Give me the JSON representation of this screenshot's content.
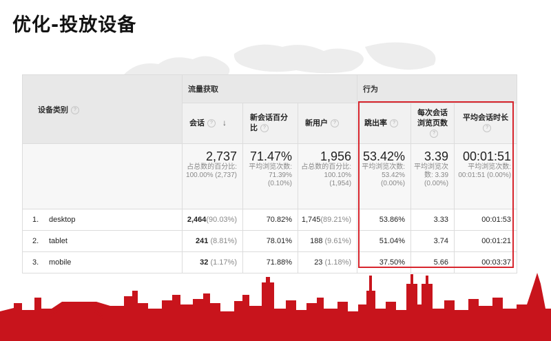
{
  "page": {
    "title": "优化-投放设备"
  },
  "table": {
    "dimension_header": "设备类别",
    "groups": {
      "acquisition": "流量获取",
      "behavior": "行为"
    },
    "columns": {
      "sessions": "会话",
      "new_session_pct": "新会话百分比",
      "new_users": "新用户",
      "bounce_rate": "跳出率",
      "pages_per_session": "每次会话浏览页数",
      "avg_duration": "平均会话时长"
    },
    "summary": {
      "sessions": {
        "value": "2,737",
        "note": "占总数的百分比: 100.00% (2,737)"
      },
      "new_session_pct": {
        "value": "71.47%",
        "note": "平均浏览次数: 71.39% (0.10%)"
      },
      "new_users": {
        "value": "1,956",
        "note": "占总数的百分比: 100.10% (1,954)"
      },
      "bounce_rate": {
        "value": "53.42%",
        "note": "平均浏览次数: 53.42% (0.00%)"
      },
      "pages_per_session": {
        "value": "3.39",
        "note": "平均浏览次数: 3.39 (0.00%)"
      },
      "avg_duration": {
        "value": "00:01:51",
        "note": "平均浏览次数: 00:01:51 (0.00%)"
      }
    },
    "rows": [
      {
        "index": "1.",
        "device": "desktop",
        "sessions": "2,464",
        "sessions_pct": "(90.03%)",
        "new_session_pct": "70.82%",
        "new_users": "1,745",
        "new_users_pct": "(89.21%)",
        "bounce_rate": "53.86%",
        "pages_per_session": "3.33",
        "avg_duration": "00:01:53"
      },
      {
        "index": "2.",
        "device": "tablet",
        "sessions": "241",
        "sessions_pct": "(8.81%)",
        "new_session_pct": "78.01%",
        "new_users": "188",
        "new_users_pct": "(9.61%)",
        "bounce_rate": "51.04%",
        "pages_per_session": "3.74",
        "avg_duration": "00:01:21"
      },
      {
        "index": "3.",
        "device": "mobile",
        "sessions": "32",
        "sessions_pct": "(1.17%)",
        "new_session_pct": "71.88%",
        "new_users": "23",
        "new_users_pct": "(1.18%)",
        "bounce_rate": "37.50%",
        "pages_per_session": "5.66",
        "avg_duration": "00:03:37"
      }
    ]
  },
  "icons": {
    "help": "help-circle-icon",
    "sort": "sort-arrow-down-icon"
  },
  "colors": {
    "highlight": "#d7242c",
    "skyline": "#c8141c",
    "header_bg": "#e8e8e8"
  }
}
